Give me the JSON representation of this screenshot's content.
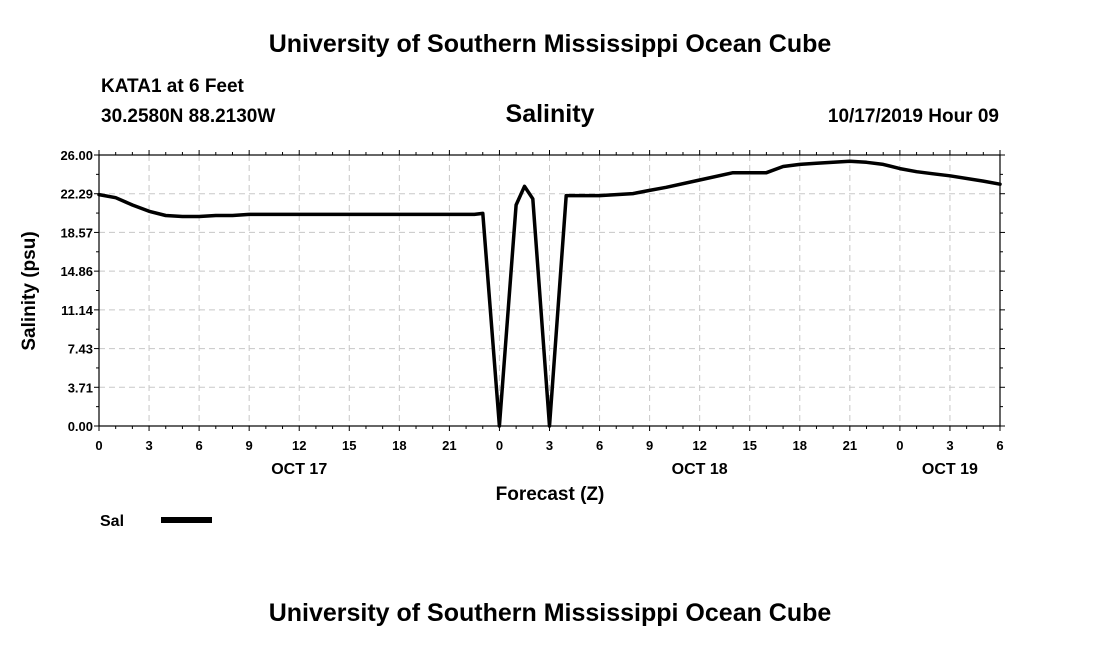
{
  "header": {
    "title": "University of Southern Mississippi Ocean Cube",
    "station": "KATA1 at 6 Feet",
    "coordinates": "30.2580N 88.2130W",
    "issued": "10/17/2019 Hour 09"
  },
  "footer": {
    "title": "University of Southern Mississippi Ocean Cube"
  },
  "chart_data": {
    "type": "line",
    "title": "Salinity",
    "xlabel": "Forecast (Z)",
    "ylabel": "Salinity (psu)",
    "x_range_hours": [
      0,
      54
    ],
    "ylim": [
      0,
      26
    ],
    "y_ticks": [
      "0.00",
      "3.71",
      "7.43",
      "11.14",
      "14.86",
      "18.57",
      "22.29",
      "26.00"
    ],
    "x_ticks": [
      "0",
      "3",
      "6",
      "9",
      "12",
      "15",
      "18",
      "21",
      "0",
      "3",
      "6",
      "9",
      "12",
      "15",
      "18",
      "21",
      "0",
      "3",
      "6"
    ],
    "date_labels": [
      {
        "label": "OCT 17",
        "hour": 12
      },
      {
        "label": "OCT 18",
        "hour": 36
      },
      {
        "label": "OCT 19",
        "hour": 51
      }
    ],
    "grid": true,
    "legend": {
      "position": "bottom-left"
    },
    "series": [
      {
        "name": "Sal",
        "color": "#000000",
        "x": [
          0,
          1,
          2,
          3,
          4,
          5,
          6,
          7,
          8,
          9,
          12,
          15,
          18,
          21,
          22.5,
          23,
          24,
          25,
          25.5,
          26,
          27,
          28,
          29,
          30,
          32,
          33,
          34,
          36,
          38,
          39,
          40,
          41,
          42,
          43,
          45,
          46,
          47,
          48,
          49,
          50,
          51,
          53,
          54
        ],
        "values": [
          22.2,
          21.9,
          21.2,
          20.6,
          20.2,
          20.1,
          20.1,
          20.2,
          20.2,
          20.3,
          20.3,
          20.3,
          20.3,
          20.3,
          20.3,
          20.4,
          0.0,
          21.2,
          23.0,
          21.8,
          0.0,
          22.1,
          22.1,
          22.1,
          22.3,
          22.6,
          22.9,
          23.6,
          24.3,
          24.3,
          24.3,
          24.9,
          25.1,
          25.2,
          25.4,
          25.3,
          25.1,
          24.7,
          24.4,
          24.2,
          24.0,
          23.5,
          23.2
        ]
      }
    ]
  }
}
